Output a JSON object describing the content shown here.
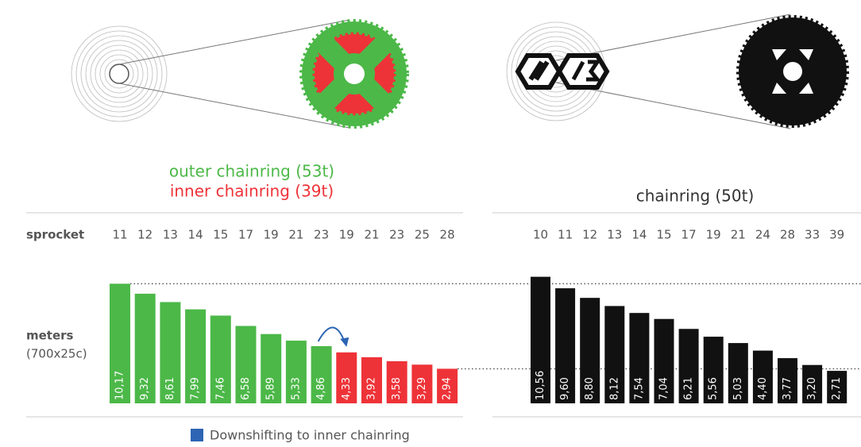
{
  "row_label": "sprocket",
  "axis_label": "meters",
  "axis_sublabel": "(700x25c)",
  "chart_data": [
    {
      "type": "bar",
      "series": [
        {
          "name": "outer chainring (53t)",
          "color": "#4cb848",
          "values": [
            10.17,
            9.32,
            8.61,
            7.99,
            7.46,
            6.58,
            5.89,
            5.33,
            4.86,
            null,
            null,
            null,
            null,
            null
          ],
          "value_labels": [
            "10,17",
            "9,32",
            "8,61",
            "7,99",
            "7,46",
            "6,58",
            "5,89",
            "5,33",
            "4,86",
            null,
            null,
            null,
            null,
            null
          ]
        },
        {
          "name": "inner chainring (39t)",
          "color": "#ee3338",
          "values": [
            null,
            null,
            null,
            null,
            null,
            null,
            null,
            null,
            null,
            4.33,
            3.92,
            3.58,
            3.29,
            2.94
          ],
          "value_labels": [
            null,
            null,
            null,
            null,
            null,
            null,
            null,
            null,
            null,
            "4,33",
            "3,92",
            "3,58",
            "3,29",
            "2,94"
          ]
        }
      ],
      "categories": [
        "11",
        "12",
        "13",
        "14",
        "15",
        "17",
        "19",
        "21",
        "23",
        "19",
        "21",
        "23",
        "25",
        "28"
      ],
      "ylim": [
        0,
        10.8
      ],
      "annotation": "Downshifting to inner chainring",
      "annotation_color": "#2d64b4"
    },
    {
      "type": "bar",
      "title": "chainring (50t)",
      "color": "#111111",
      "categories": [
        "10",
        "11",
        "12",
        "13",
        "14",
        "15",
        "17",
        "19",
        "21",
        "24",
        "28",
        "33",
        "39"
      ],
      "values": [
        10.56,
        9.6,
        8.8,
        8.12,
        7.54,
        7.04,
        6.21,
        5.56,
        5.03,
        4.4,
        3.77,
        3.2,
        2.71
      ],
      "value_labels": [
        "10,56",
        "9,60",
        "8,80",
        "8,12",
        "7,54",
        "7,04",
        "6,21",
        "5,56",
        "5,03",
        "4,40",
        "3,77",
        "3,20",
        "2,71"
      ],
      "ylim": [
        0,
        10.6
      ]
    }
  ]
}
